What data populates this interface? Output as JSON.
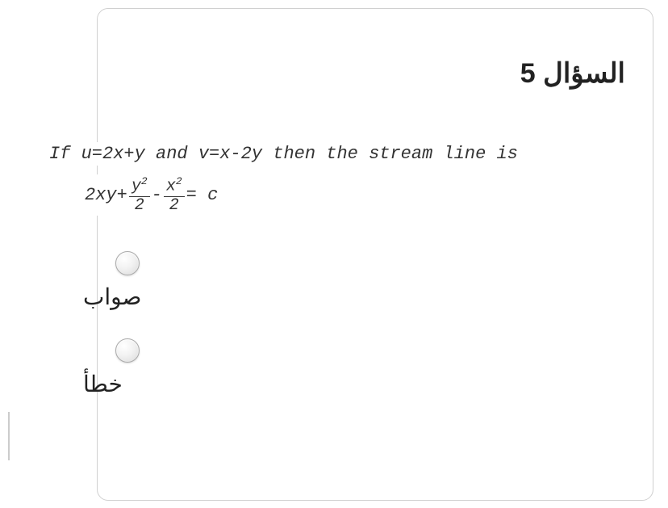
{
  "question": {
    "title": "السؤال 5",
    "line1_parts": {
      "p1": "If  u=2x+y and  v=x-2y  then the stream line is"
    },
    "line2_parts": {
      "lead": "2xy+",
      "frac1_num": "y",
      "frac1_sup": "2",
      "frac1_den": "2",
      "minus": "-",
      "frac2_num": "x",
      "frac2_sup": "2",
      "frac2_den": "2",
      "tail": "= c"
    },
    "options": [
      {
        "label": "صواب"
      },
      {
        "label": "خطأ"
      }
    ]
  },
  "style": {
    "card_border_color": "#d0d0d0",
    "text_color": "#333333",
    "radio_border": "#aaaaaa"
  }
}
